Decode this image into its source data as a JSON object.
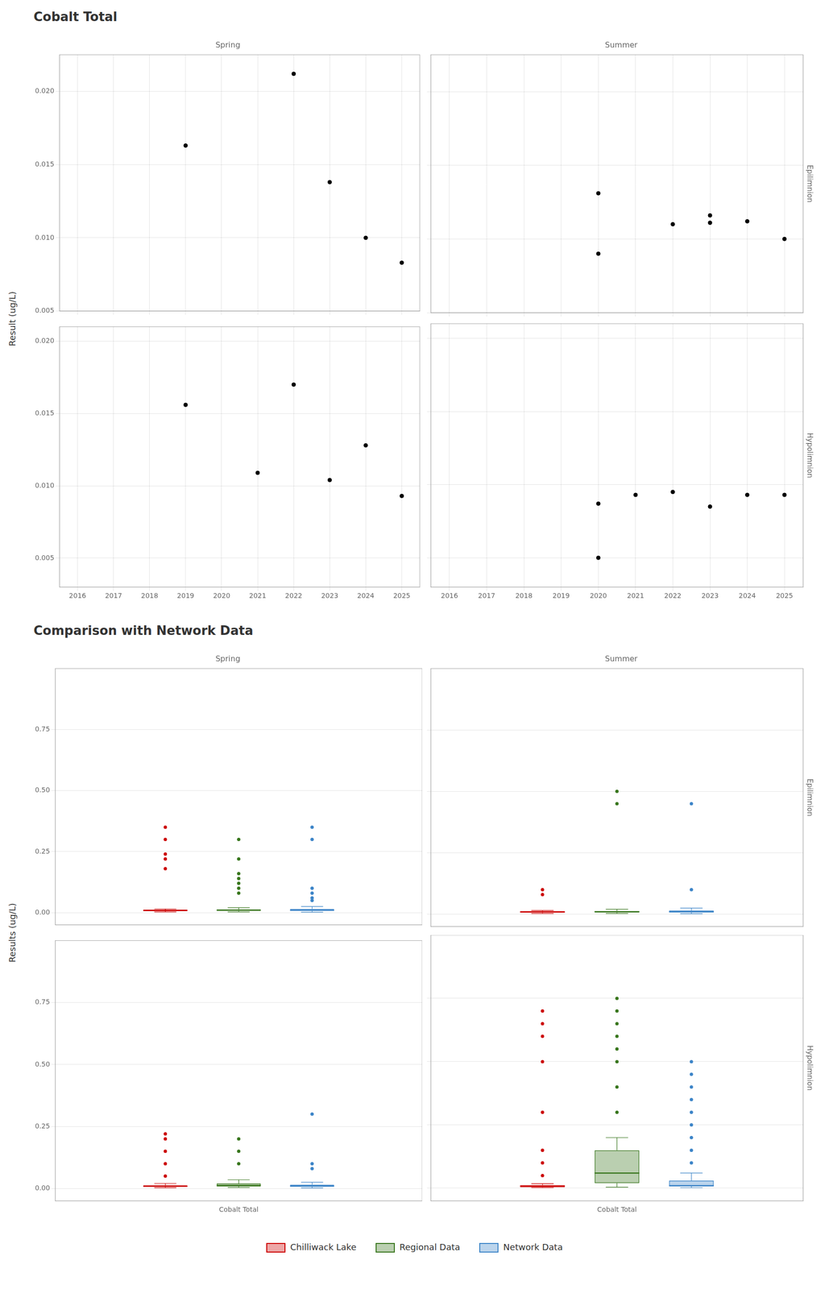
{
  "chart_data": [
    {
      "type": "scatter",
      "title": "Cobalt Total",
      "subtitle": "Spring",
      "ylabel": "Result (ug/L)",
      "x": [
        2019,
        2022,
        2023,
        2024,
        2025
      ],
      "values": [
        0.0163,
        0.0212,
        0.0138,
        0.01,
        0.0083
      ],
      "color": "black",
      "xlim": [
        2015.5,
        2025.5
      ],
      "xticks": [
        2016,
        2017,
        2018,
        2019,
        2020,
        2021,
        2022,
        2023,
        2024,
        2025
      ],
      "ylim": [
        0.005,
        0.0225
      ],
      "yticks": [
        0.005,
        {
          "value": 0.01,
          "label": "0.010"
        },
        0.015,
        {
          "value": 0.02,
          "label": "0.020"
        }
      ],
      "grid": true,
      "tick_labels": "y"
    },
    {
      "type": "scatter",
      "subtitle": "Summer",
      "y2label": "Epilimnion",
      "x": [
        2020,
        2020,
        2022,
        2023,
        2023,
        2024,
        2025
      ],
      "values": [
        0.0131,
        0.009,
        0.011,
        0.0116,
        0.0111,
        0.0112,
        0.01
      ],
      "color": "black",
      "xlim": [
        2015.5,
        2025.5
      ],
      "xticks": [
        2016,
        2017,
        2018,
        2019,
        2020,
        2021,
        2022,
        2023,
        2024,
        2025
      ],
      "ylim": [
        0.005,
        0.0225
      ],
      "yticks": [
        0.005,
        {
          "value": 0.01,
          "label": "0.010"
        },
        0.015,
        {
          "value": 0.02,
          "label": "0.020"
        }
      ],
      "grid": true,
      "tick_labels": false
    },
    {
      "type": "scatter",
      "x": [
        2019,
        2021,
        2022,
        2023,
        2024,
        2025
      ],
      "values": [
        0.0156,
        0.0109,
        0.017,
        0.0104,
        0.0128,
        0.0093
      ],
      "color": "black",
      "xlim": [
        2015.5,
        2025.5
      ],
      "xticks": [
        2016,
        2017,
        2018,
        2019,
        2020,
        2021,
        2022,
        2023,
        2024,
        2025
      ],
      "ylim": [
        0.003,
        0.021
      ],
      "yticks": [
        0.005,
        {
          "value": 0.01,
          "label": "0.010"
        },
        0.015,
        {
          "value": 0.02,
          "label": "0.020"
        }
      ],
      "grid": true,
      "tick_labels": true
    },
    {
      "type": "scatter",
      "y2label": "Hypolimnion",
      "x": [
        2020,
        2020,
        2021,
        2022,
        2023,
        2024,
        2025
      ],
      "values": [
        0.0087,
        0.005,
        0.0093,
        0.0095,
        0.0085,
        0.0093,
        0.0093
      ],
      "color": "black",
      "xlim": [
        2015.5,
        2025.5
      ],
      "xticks": [
        2016,
        2017,
        2018,
        2019,
        2020,
        2021,
        2022,
        2023,
        2024,
        2025
      ],
      "ylim": [
        0.003,
        0.021
      ],
      "yticks": [
        0.005,
        {
          "value": 0.01,
          "label": "0.010"
        },
        0.015,
        {
          "value": 0.02,
          "label": "0.020"
        }
      ],
      "grid": true,
      "tick_labels": "x"
    },
    {
      "type": "box",
      "title": "Comparison with Network Data",
      "subtitle": "Spring",
      "ylabel": "Results (ug/L)",
      "categories": [
        "Cobalt Total"
      ],
      "series": [
        {
          "name": "Chilliwack Lake",
          "color": "#CC0000",
          "values": [
            {
              "median": 0.009,
              "q1": 0.006,
              "q3": 0.012,
              "whislo": 0.003,
              "whishi": 0.015,
              "fliers": [
                0.18,
                0.22,
                0.24,
                0.3,
                0.35
              ]
            }
          ]
        },
        {
          "name": "Regional Data",
          "color": "#38761D",
          "values": [
            {
              "median": 0.01,
              "q1": 0.007,
              "q3": 0.013,
              "whislo": 0.003,
              "whishi": 0.02,
              "fliers": [
                0.08,
                0.1,
                0.12,
                0.14,
                0.16,
                0.22,
                0.3
              ]
            }
          ]
        },
        {
          "name": "Network Data",
          "color": "#3D85C8",
          "values": [
            {
              "median": 0.01,
              "q1": 0.007,
              "q3": 0.015,
              "whislo": 0.002,
              "whishi": 0.025,
              "fliers": [
                0.05,
                0.06,
                0.08,
                0.1,
                0.3,
                0.35
              ]
            }
          ]
        }
      ],
      "ylim": [
        -0.05,
        1.0
      ],
      "yticks": [
        {
          "value": 0,
          "label": "0.00"
        },
        0.25,
        {
          "value": 0.5,
          "label": "0.50"
        },
        0.75
      ],
      "grid": "y",
      "tick_labels": "y"
    },
    {
      "type": "box",
      "subtitle": "Summer",
      "y2label": "Epilimnion",
      "categories": [
        "Cobalt Total"
      ],
      "series": [
        {
          "name": "Chilliwack Lake",
          "color": "#CC0000",
          "values": [
            {
              "median": 0.009,
              "q1": 0.006,
              "q3": 0.012,
              "whislo": 0.003,
              "whishi": 0.015,
              "fliers": [
                0.08,
                0.1
              ]
            }
          ]
        },
        {
          "name": "Regional Data",
          "color": "#38761D",
          "values": [
            {
              "median": 0.01,
              "q1": 0.007,
              "q3": 0.013,
              "whislo": 0.003,
              "whishi": 0.02,
              "fliers": [
                0.45,
                0.5
              ]
            }
          ]
        },
        {
          "name": "Network Data",
          "color": "#3D85C8",
          "values": [
            {
              "median": 0.01,
              "q1": 0.007,
              "q3": 0.015,
              "whislo": 0.002,
              "whishi": 0.025,
              "fliers": [
                0.1,
                0.45
              ]
            }
          ]
        }
      ],
      "ylim": [
        -0.05,
        1.0
      ],
      "yticks": [
        {
          "value": 0,
          "label": "0.00"
        },
        0.25,
        {
          "value": 0.5,
          "label": "0.50"
        },
        0.75
      ],
      "grid": "y",
      "tick_labels": false
    },
    {
      "type": "box",
      "categories": [
        "Cobalt Total"
      ],
      "series": [
        {
          "name": "Chilliwack Lake",
          "color": "#CC0000",
          "values": [
            {
              "median": 0.009,
              "q1": 0.006,
              "q3": 0.013,
              "whislo": 0.003,
              "whishi": 0.02,
              "fliers": [
                0.05,
                0.1,
                0.15,
                0.2,
                0.22
              ]
            }
          ]
        },
        {
          "name": "Regional Data",
          "color": "#38761D",
          "values": [
            {
              "median": 0.012,
              "q1": 0.008,
              "q3": 0.02,
              "whislo": 0.004,
              "whishi": 0.035,
              "fliers": [
                0.1,
                0.15,
                0.2
              ]
            }
          ]
        },
        {
          "name": "Network Data",
          "color": "#3D85C8",
          "values": [
            {
              "median": 0.01,
              "q1": 0.007,
              "q3": 0.015,
              "whislo": 0.002,
              "whishi": 0.025,
              "fliers": [
                0.08,
                0.1,
                0.3
              ]
            }
          ]
        }
      ],
      "ylim": [
        -0.05,
        1.0
      ],
      "yticks": [
        {
          "value": 0,
          "label": "0.00"
        },
        0.25,
        {
          "value": 0.5,
          "label": "0.50"
        },
        0.75
      ],
      "grid": "y",
      "tick_labels": true
    },
    {
      "type": "box",
      "y2label": "Hypolimnion",
      "categories": [
        "Cobalt Total"
      ],
      "series": [
        {
          "name": "Chilliwack Lake",
          "color": "#CC0000",
          "values": [
            {
              "median": 0.008,
              "q1": 0.004,
              "q3": 0.012,
              "whislo": 0.002,
              "whishi": 0.018,
              "fliers": [
                0.05,
                0.1,
                0.15,
                0.3,
                0.5,
                0.6,
                0.65,
                0.7
              ]
            }
          ]
        },
        {
          "name": "Regional Data",
          "color": "#38761D",
          "values": [
            {
              "median": 0.06,
              "q1": 0.02,
              "q3": 0.15,
              "whislo": 0.004,
              "whishi": 0.2,
              "fliers": [
                0.3,
                0.4,
                0.5,
                0.55,
                0.6,
                0.65,
                0.7,
                0.75
              ]
            }
          ]
        },
        {
          "name": "Network Data",
          "color": "#3D85C8",
          "values": [
            {
              "median": 0.01,
              "q1": 0.007,
              "q3": 0.03,
              "whislo": 0.002,
              "whishi": 0.06,
              "fliers": [
                0.1,
                0.15,
                0.2,
                0.25,
                0.3,
                0.35,
                0.4,
                0.45,
                0.5
              ]
            }
          ]
        }
      ],
      "ylim": [
        -0.05,
        1.0
      ],
      "yticks": [
        {
          "value": 0,
          "label": "0.00"
        },
        0.25,
        {
          "value": 0.5,
          "label": "0.50"
        },
        0.75
      ],
      "grid": "y",
      "tick_labels": "x",
      "legend": "bottom"
    }
  ]
}
